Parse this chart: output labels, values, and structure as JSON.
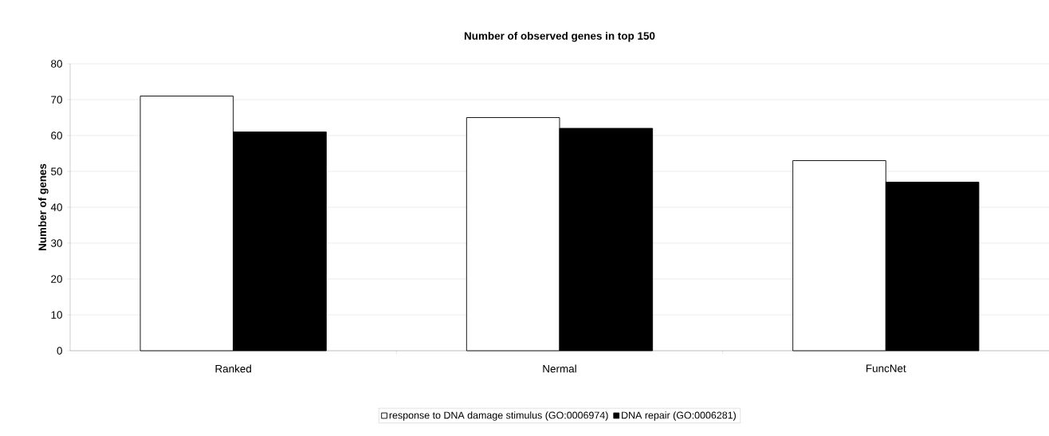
{
  "chart_data": {
    "type": "bar",
    "title": "Number of observed genes in top 150",
    "ylabel": "Number of genes",
    "categories": [
      "Ranked",
      "Nermal",
      "FuncNet"
    ],
    "series": [
      {
        "name": "response to DNA damage stimulus (GO:0006974)",
        "color": "#ffffff",
        "values": [
          71,
          65,
          53
        ]
      },
      {
        "name": "DNA repair (GO:0006281)",
        "color": "#000000",
        "values": [
          61,
          62,
          47
        ]
      }
    ],
    "ylim": [
      0,
      80
    ],
    "yticks": [
      0,
      10,
      20,
      30,
      40,
      50,
      60,
      70,
      80
    ],
    "grid": "y",
    "legend": "bottom"
  }
}
